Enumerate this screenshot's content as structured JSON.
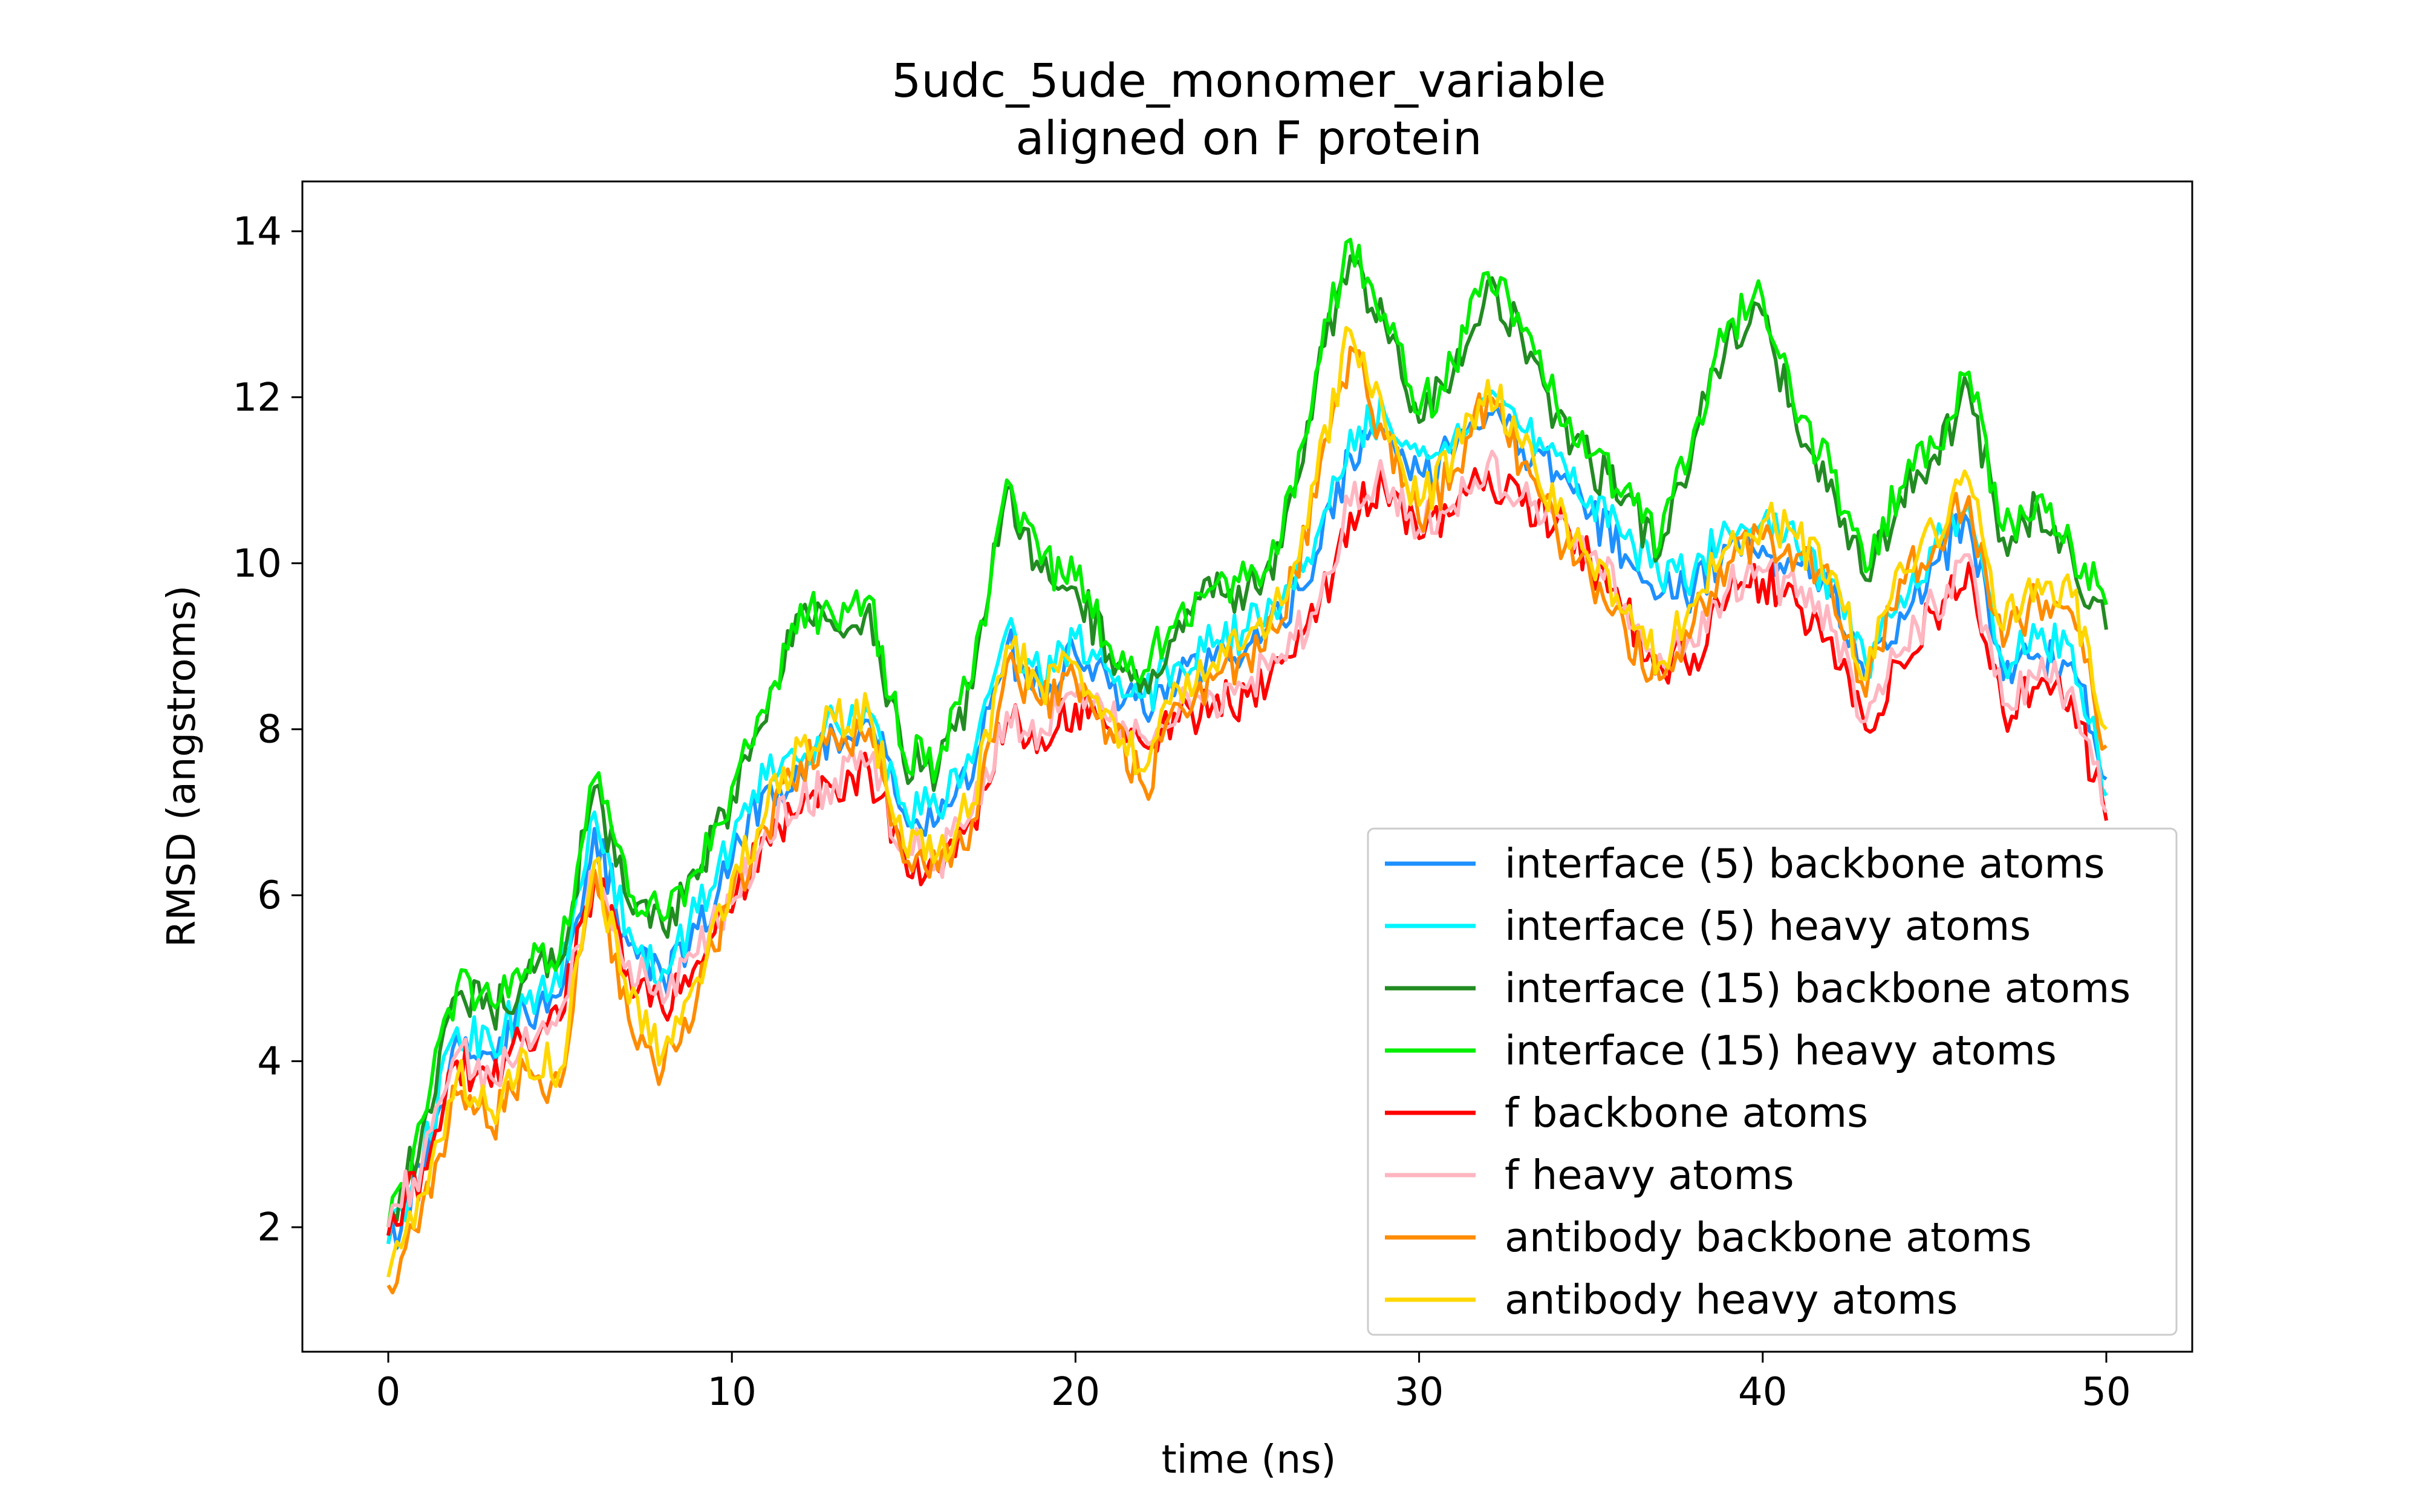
{
  "chart_data": {
    "type": "line",
    "title": "5udc_5ude_monomer_variable",
    "subtitle": "aligned on F protein",
    "xlabel": "time (ns)",
    "ylabel": "RMSD (angstroms)",
    "xlim": [
      -2.5,
      52.5
    ],
    "ylim": [
      0.5,
      14.6
    ],
    "xticks": [
      0,
      10,
      20,
      30,
      40,
      50
    ],
    "yticks": [
      2,
      4,
      6,
      8,
      10,
      12,
      14
    ],
    "grid": false,
    "legend_position": "lower-right",
    "x": [
      0,
      1,
      2,
      3,
      4,
      5,
      6,
      7,
      8,
      9,
      10,
      11,
      12,
      13,
      14,
      15,
      16,
      17,
      18,
      19,
      20,
      21,
      22,
      23,
      24,
      25,
      26,
      27,
      28,
      29,
      30,
      31,
      32,
      33,
      34,
      35,
      36,
      37,
      38,
      39,
      40,
      41,
      42,
      43,
      44,
      45,
      46,
      47,
      48,
      49,
      50
    ],
    "series": [
      {
        "name": "interface (5) backbone atoms",
        "color": "#1e90ff",
        "values": [
          1.8,
          2.7,
          4.3,
          4.1,
          4.6,
          4.8,
          6.8,
          5.4,
          5.0,
          5.6,
          6.4,
          7.3,
          7.5,
          7.9,
          8.1,
          7.0,
          6.9,
          7.4,
          9.0,
          8.4,
          8.9,
          8.5,
          8.2,
          8.6,
          8.8,
          9.0,
          9.3,
          10.1,
          11.3,
          11.6,
          11.1,
          11.3,
          11.8,
          11.4,
          11.1,
          10.6,
          10.1,
          9.6,
          9.7,
          10.2,
          10.2,
          10.0,
          9.6,
          8.6,
          9.4,
          10.0,
          10.5,
          8.6,
          8.9,
          8.8,
          7.4
        ]
      },
      {
        "name": "interface (5) heavy atoms",
        "color": "#00f5ff",
        "values": [
          1.8,
          2.8,
          4.4,
          4.2,
          4.7,
          4.9,
          7.0,
          5.6,
          5.1,
          5.8,
          6.6,
          7.4,
          7.6,
          8.1,
          8.2,
          7.1,
          7.0,
          7.6,
          9.2,
          8.6,
          9.1,
          8.7,
          8.4,
          8.8,
          9.0,
          9.2,
          9.5,
          10.3,
          11.6,
          11.8,
          11.3,
          11.5,
          12.0,
          11.6,
          11.3,
          10.8,
          10.3,
          9.8,
          9.9,
          10.4,
          10.5,
          10.2,
          9.8,
          8.8,
          9.6,
          10.2,
          10.7,
          8.8,
          9.1,
          9.0,
          7.2
        ]
      },
      {
        "name": "interface (15) backbone atoms",
        "color": "#228b22",
        "values": [
          1.9,
          3.2,
          4.8,
          4.6,
          5.0,
          5.2,
          7.3,
          5.9,
          5.6,
          6.2,
          7.2,
          8.1,
          9.4,
          9.2,
          9.5,
          7.6,
          7.5,
          8.5,
          10.9,
          9.9,
          9.7,
          8.9,
          8.6,
          9.3,
          9.6,
          9.7,
          10.2,
          12.2,
          13.7,
          12.9,
          11.7,
          12.3,
          13.4,
          12.7,
          11.8,
          11.2,
          10.8,
          10.1,
          11.5,
          12.8,
          13.0,
          11.6,
          11.0,
          9.8,
          10.8,
          11.3,
          12.1,
          10.3,
          10.7,
          10.1,
          9.2
        ]
      },
      {
        "name": "interface (15) heavy atoms",
        "color": "#00ee00",
        "values": [
          2.0,
          3.3,
          4.9,
          4.7,
          5.1,
          5.3,
          7.4,
          6.0,
          5.7,
          6.3,
          7.3,
          8.2,
          9.5,
          9.3,
          9.6,
          7.7,
          7.6,
          8.6,
          11.0,
          10.0,
          9.8,
          9.0,
          8.7,
          9.4,
          9.7,
          9.8,
          10.3,
          12.3,
          13.9,
          13.0,
          11.8,
          12.4,
          13.5,
          12.8,
          11.9,
          11.3,
          10.9,
          10.2,
          11.6,
          12.9,
          13.2,
          11.7,
          11.1,
          9.9,
          10.9,
          11.4,
          12.3,
          10.4,
          10.8,
          10.2,
          9.5
        ]
      },
      {
        "name": "f backbone atoms",
        "color": "#ff0000",
        "values": [
          1.9,
          2.7,
          4.0,
          3.7,
          4.3,
          4.5,
          6.2,
          5.1,
          4.6,
          5.2,
          5.8,
          6.7,
          7.0,
          7.3,
          7.5,
          6.5,
          6.3,
          6.9,
          8.1,
          7.9,
          8.3,
          8.0,
          7.8,
          8.1,
          8.3,
          8.4,
          8.8,
          9.3,
          10.6,
          10.9,
          10.3,
          10.6,
          11.1,
          10.7,
          10.5,
          10.0,
          9.4,
          8.8,
          8.9,
          9.6,
          9.8,
          9.5,
          9.1,
          8.0,
          8.8,
          9.4,
          10.0,
          8.2,
          8.5,
          8.4,
          6.9
        ]
      },
      {
        "name": "f heavy atoms",
        "color": "#ffb6c1",
        "values": [
          2.0,
          2.8,
          4.1,
          3.8,
          4.4,
          4.6,
          6.3,
          5.2,
          4.7,
          5.3,
          5.9,
          6.8,
          7.1,
          7.4,
          7.6,
          6.6,
          6.4,
          7.0,
          8.2,
          8.0,
          8.4,
          8.1,
          7.9,
          8.2,
          8.4,
          8.5,
          8.9,
          9.4,
          10.7,
          11.0,
          10.4,
          10.7,
          11.2,
          10.8,
          10.6,
          10.1,
          9.5,
          8.9,
          9.0,
          9.7,
          9.9,
          9.6,
          9.2,
          8.1,
          8.9,
          9.5,
          10.1,
          8.3,
          8.6,
          8.5,
          7.0
        ]
      },
      {
        "name": "antibody backbone atoms",
        "color": "#ff8c00",
        "values": [
          1.3,
          2.3,
          3.6,
          3.2,
          3.9,
          3.7,
          6.3,
          4.5,
          3.9,
          4.8,
          6.0,
          6.8,
          7.6,
          7.9,
          8.0,
          6.4,
          6.3,
          6.9,
          8.8,
          8.3,
          8.6,
          8.0,
          7.3,
          8.3,
          8.6,
          8.9,
          9.3,
          10.8,
          12.6,
          11.5,
          10.5,
          11.1,
          12.0,
          11.2,
          10.4,
          9.8,
          9.2,
          8.6,
          9.3,
          10.0,
          10.3,
          10.1,
          9.7,
          8.4,
          9.8,
          10.2,
          10.8,
          9.0,
          9.6,
          9.4,
          7.8
        ]
      },
      {
        "name": "antibody heavy atoms",
        "color": "#ffd700",
        "values": [
          1.4,
          2.4,
          3.8,
          3.4,
          4.1,
          3.9,
          6.4,
          4.7,
          4.1,
          5.0,
          6.2,
          7.0,
          7.8,
          8.1,
          8.2,
          6.6,
          6.5,
          7.1,
          9.0,
          8.5,
          8.8,
          8.2,
          7.5,
          8.5,
          8.8,
          9.1,
          9.5,
          11.0,
          12.8,
          11.7,
          10.7,
          11.3,
          12.2,
          11.4,
          10.6,
          10.0,
          9.4,
          8.8,
          9.5,
          10.2,
          10.5,
          10.3,
          9.9,
          8.6,
          10.0,
          10.4,
          11.0,
          9.2,
          9.8,
          9.6,
          8.0
        ]
      }
    ]
  }
}
